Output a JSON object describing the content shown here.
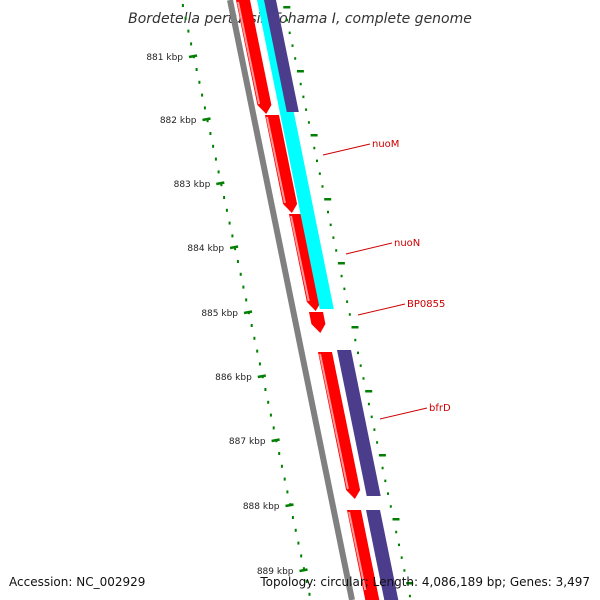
{
  "title": "Bordetella pertussis Tohama I, complete genome",
  "footer": {
    "accession": "Accession: NC_002929",
    "info": "Topology: circular; Length: 4,086,189 bp; Genes: 3,497"
  },
  "colors": {
    "backbone": "#808080",
    "cds": "#ff0000",
    "cds_highlight": "#ff9a9a",
    "rrna_cyan": "#00ffff",
    "gene_purple": "#4b3c8c",
    "tick": "#008000",
    "label": "#cc0000"
  },
  "ruler": {
    "labels": [
      "881 kbp",
      "882 kbp",
      "883 kbp",
      "884 kbp",
      "885 kbp",
      "886 kbp",
      "887 kbp",
      "888 kbp",
      "889 kbp"
    ]
  },
  "gene_labels": [
    {
      "name": "nuoM"
    },
    {
      "name": "nuoN"
    },
    {
      "name": "BP0855"
    },
    {
      "name": "bfrD"
    }
  ]
}
